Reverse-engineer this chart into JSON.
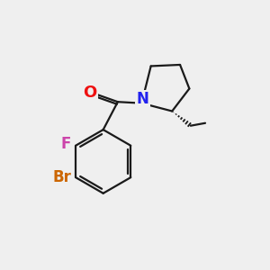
{
  "background_color": "#efefef",
  "bond_color": "#1a1a1a",
  "atom_colors": {
    "O": "#ee1111",
    "N": "#2222ee",
    "F": "#cc44aa",
    "Br": "#cc6600",
    "C": "#1a1a1a"
  },
  "font_size_atoms": 12,
  "line_width": 1.6,
  "fig_size": [
    3.0,
    3.0
  ],
  "dpi": 100
}
